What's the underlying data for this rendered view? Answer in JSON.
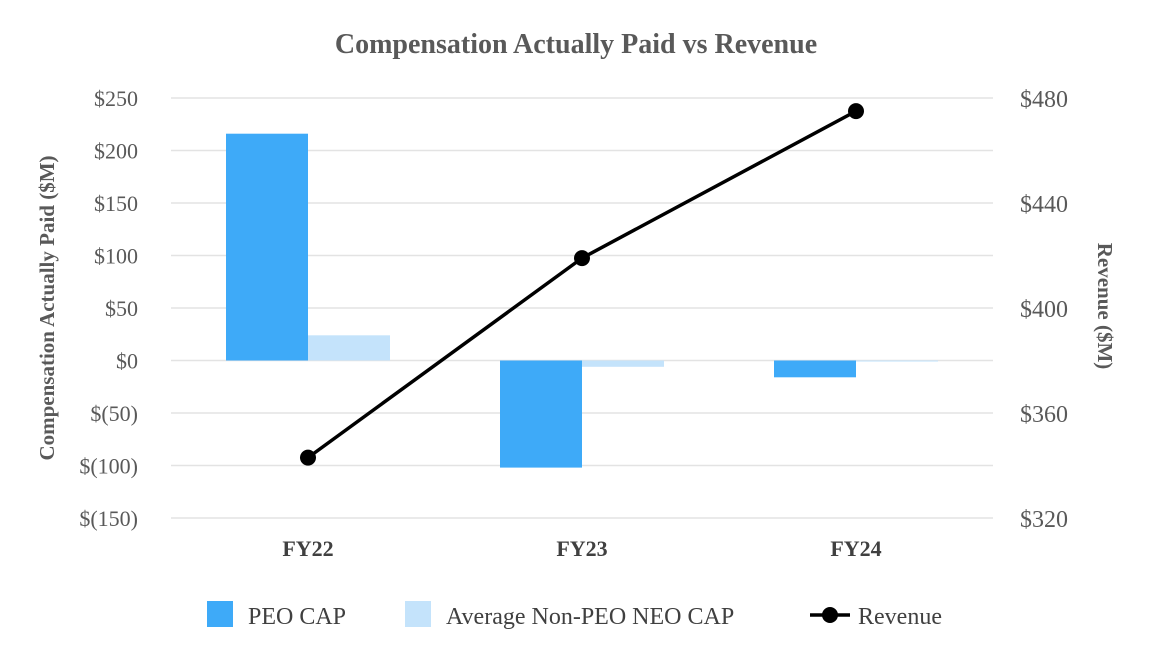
{
  "chart_data": {
    "type": "bar",
    "title": "Compensation Actually Paid vs Revenue",
    "categories": [
      "FY22",
      "FY23",
      "FY24"
    ],
    "ylabel": "Compensation Actually Paid ($M)",
    "y2label": "Revenue ($M)",
    "ylim": [
      -150,
      250
    ],
    "y2lim": [
      320,
      480
    ],
    "yticks": [
      250,
      200,
      150,
      100,
      50,
      0,
      -50,
      -100,
      -150
    ],
    "ytick_labels": [
      "$250",
      "$200",
      "$150",
      "$100",
      "$50",
      "$0",
      "$(50)",
      "$(100)",
      "$(150)"
    ],
    "y2ticks": [
      480,
      440,
      400,
      360,
      320
    ],
    "y2tick_labels": [
      "$480",
      "$440",
      "$400",
      "$360",
      "$320"
    ],
    "grid": true,
    "legend_position": "bottom",
    "series": [
      {
        "name": "PEO CAP",
        "type": "bar",
        "axis": "left",
        "color": "#3eaaf8",
        "values": [
          216,
          -102,
          -16
        ]
      },
      {
        "name": "Average Non-PEO NEO CAP",
        "type": "bar",
        "axis": "left",
        "color": "#c4e3fb",
        "values": [
          24,
          -6,
          -1
        ]
      },
      {
        "name": "Revenue",
        "type": "line",
        "axis": "right",
        "color": "#000000",
        "values": [
          343,
          419,
          475
        ]
      }
    ]
  }
}
